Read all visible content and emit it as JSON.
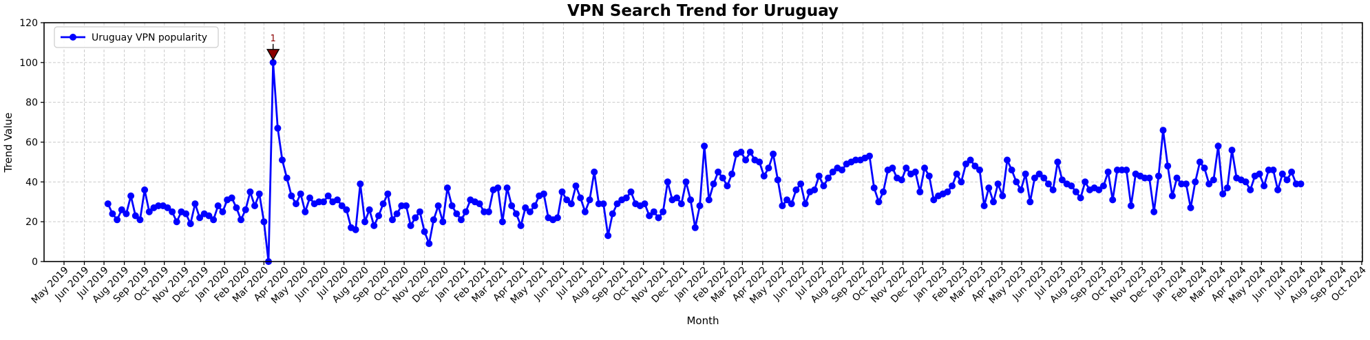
{
  "title": "VPN Search Trend for Uruguay",
  "xlabel": "Month",
  "ylabel": "Trend Value",
  "legend": {
    "label": "Uruguay VPN popularity",
    "position": "upper-left",
    "marker_icon": "circle-on-line"
  },
  "colors": {
    "line": "#0000ff",
    "marker": "#0000ff",
    "annotation": "#8b0000",
    "annotation_edge": "#000000",
    "grid": "#c9c9c9",
    "axis": "#000000",
    "background": "#ffffff"
  },
  "chart_data": {
    "type": "line",
    "title": "VPN Search Trend for Uruguay",
    "xlabel": "Month",
    "ylabel": "Trend Value",
    "ylim": [
      0,
      120
    ],
    "yticks": [
      0,
      20,
      40,
      60,
      80,
      100,
      120
    ],
    "grid": true,
    "grid_style": "dashed",
    "legend_position": "upper-left",
    "x_range": [
      "May 2019",
      "Oct 2024"
    ],
    "x_tick_labels": [
      "May 2019",
      "Jun 2019",
      "Jul 2019",
      "Aug 2019",
      "Sep 2019",
      "Oct 2019",
      "Nov 2019",
      "Dec 2019",
      "Jan 2020",
      "Feb 2020",
      "Mar 2020",
      "Apr 2020",
      "May 2020",
      "Jun 2020",
      "Jul 2020",
      "Aug 2020",
      "Sep 2020",
      "Oct 2020",
      "Nov 2020",
      "Dec 2020",
      "Jan 2021",
      "Feb 2021",
      "Mar 2021",
      "Apr 2021",
      "May 2021",
      "Jun 2021",
      "Jul 2021",
      "Aug 2021",
      "Sep 2021",
      "Oct 2021",
      "Nov 2021",
      "Dec 2021",
      "Jan 2022",
      "Feb 2022",
      "Mar 2022",
      "Apr 2022",
      "May 2022",
      "Jun 2022",
      "Jul 2022",
      "Aug 2022",
      "Sep 2022",
      "Oct 2022",
      "Nov 2022",
      "Dec 2022",
      "Jan 2023",
      "Feb 2023",
      "Mar 2023",
      "Apr 2023",
      "May 2023",
      "Jun 2023",
      "Jul 2023",
      "Aug 2023",
      "Sep 2023",
      "Oct 2023",
      "Nov 2023",
      "Dec 2023",
      "Jan 2024",
      "Feb 2024",
      "Mar 2024",
      "Apr 2024",
      "May 2024",
      "Jun 2024",
      "Jul 2024",
      "Aug 2024",
      "Sep 2024",
      "Oct 2024"
    ],
    "series": [
      {
        "name": "Uruguay VPN popularity",
        "marker": "circle",
        "color": "#0000ff",
        "start_date": "2019-07-07",
        "interval_days": 7,
        "values": [
          29,
          24,
          21,
          26,
          24,
          33,
          23,
          21,
          36,
          25,
          27,
          28,
          28,
          27,
          25,
          20,
          25,
          24,
          19,
          29,
          22,
          24,
          23,
          21,
          28,
          25,
          31,
          32,
          27,
          21,
          26,
          35,
          28,
          34,
          20,
          0,
          100,
          67,
          51,
          42,
          33,
          29,
          34,
          25,
          32,
          29,
          30,
          30,
          33,
          30,
          31,
          28,
          26,
          17,
          16,
          39,
          20,
          26,
          18,
          23,
          29,
          34,
          21,
          24,
          28,
          28,
          18,
          22,
          25,
          15,
          9,
          21,
          28,
          20,
          37,
          28,
          24,
          21,
          25,
          31,
          30,
          29,
          25,
          25,
          36,
          37,
          20,
          37,
          28,
          24,
          18,
          27,
          25,
          28,
          33,
          34,
          22,
          21,
          22,
          35,
          31,
          29,
          38,
          32,
          25,
          31,
          45,
          29,
          29,
          13,
          24,
          29,
          31,
          32,
          35,
          29,
          28,
          29,
          23,
          25,
          22,
          25,
          40,
          31,
          32,
          29,
          40,
          31,
          17,
          28,
          58,
          31,
          39,
          45,
          42,
          38,
          44,
          54,
          55,
          51,
          55,
          51,
          50,
          43,
          47,
          54,
          41,
          28,
          31,
          29,
          36,
          39,
          29,
          35,
          36,
          43,
          38,
          42,
          45,
          47,
          46,
          49,
          50,
          51,
          51,
          52,
          53,
          37,
          30,
          35,
          46,
          47,
          42,
          41,
          47,
          44,
          45,
          35,
          47,
          43,
          31,
          33,
          34,
          35,
          38,
          44,
          40,
          49,
          51,
          48,
          46,
          28,
          37,
          30,
          39,
          33,
          51,
          46,
          40,
          36,
          44,
          30,
          42,
          44,
          42,
          39,
          36,
          50,
          41,
          39,
          38,
          35,
          32,
          40,
          36,
          37,
          36,
          38,
          45,
          31,
          46,
          46,
          46,
          28,
          44,
          43,
          42,
          42,
          25,
          43,
          66,
          48,
          33,
          42,
          39,
          39,
          27,
          40,
          50,
          47,
          39,
          41,
          58,
          34,
          37,
          56,
          42,
          41,
          40,
          36,
          43,
          44,
          38,
          46,
          46,
          36,
          44,
          41,
          45,
          39,
          39
        ]
      }
    ],
    "annotations": [
      {
        "label": "1",
        "date": "2020-03-15",
        "value": 100,
        "marker": "triangle-down",
        "color": "#8b0000"
      }
    ]
  }
}
